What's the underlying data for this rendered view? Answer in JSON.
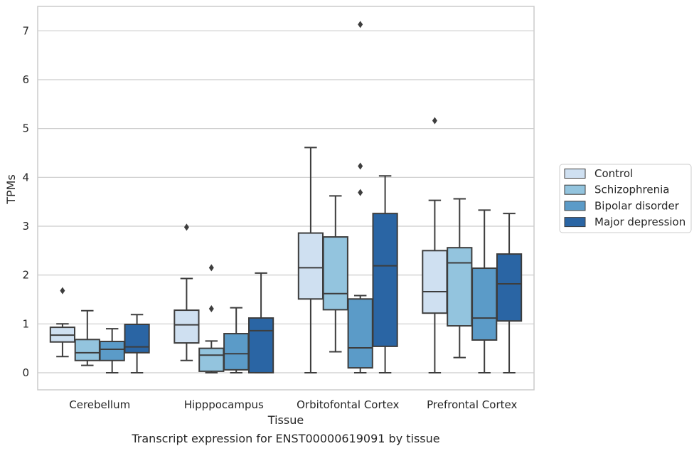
{
  "chart_data": {
    "type": "box",
    "xlabel": "Tissue",
    "ylabel": "TPMs",
    "caption": "Transcript expression for ENST00000619091 by tissue",
    "ylim": [
      -0.35,
      7.5
    ],
    "yticks": [
      "0",
      "1",
      "2",
      "3",
      "4",
      "5",
      "6",
      "7"
    ],
    "grid": true,
    "legend_position": "right",
    "categories": [
      "Cerebellum",
      "Hipppocampus",
      "Orbitofontal Cortex",
      "Prefrontal Cortex"
    ],
    "series": [
      {
        "name": "Control",
        "color": "#cfe0f1",
        "boxes": [
          {
            "whisker_low": 0.33,
            "q1": 0.63,
            "median": 0.77,
            "q3": 0.93,
            "whisker_high": 1.0,
            "outliers": [
              1.68
            ]
          },
          {
            "whisker_low": 0.25,
            "q1": 0.61,
            "median": 0.98,
            "q3": 1.28,
            "whisker_high": 1.93,
            "outliers": [
              2.98
            ]
          },
          {
            "whisker_low": 0.0,
            "q1": 1.51,
            "median": 2.15,
            "q3": 2.86,
            "whisker_high": 4.61,
            "outliers": []
          },
          {
            "whisker_low": 0.0,
            "q1": 1.22,
            "median": 1.66,
            "q3": 2.5,
            "whisker_high": 3.53,
            "outliers": [
              5.16
            ]
          }
        ]
      },
      {
        "name": "Schizophrenia",
        "color": "#93c4de",
        "boxes": [
          {
            "whisker_low": 0.15,
            "q1": 0.25,
            "median": 0.41,
            "q3": 0.68,
            "whisker_high": 1.27,
            "outliers": []
          },
          {
            "whisker_low": 0.0,
            "q1": 0.03,
            "median": 0.36,
            "q3": 0.5,
            "whisker_high": 0.65,
            "outliers": [
              2.15,
              1.31
            ]
          },
          {
            "whisker_low": 0.43,
            "q1": 1.29,
            "median": 1.62,
            "q3": 2.78,
            "whisker_high": 3.62,
            "outliers": []
          },
          {
            "whisker_low": 0.31,
            "q1": 0.96,
            "median": 2.25,
            "q3": 2.56,
            "whisker_high": 3.56,
            "outliers": []
          }
        ]
      },
      {
        "name": "Bipolar disorder",
        "color": "#5b9bc8",
        "boxes": [
          {
            "whisker_low": 0.0,
            "q1": 0.25,
            "median": 0.48,
            "q3": 0.64,
            "whisker_high": 0.9,
            "outliers": []
          },
          {
            "whisker_low": 0.0,
            "q1": 0.06,
            "median": 0.39,
            "q3": 0.8,
            "whisker_high": 1.33,
            "outliers": []
          },
          {
            "whisker_low": 0.0,
            "q1": 0.1,
            "median": 0.51,
            "q3": 1.51,
            "whisker_high": 1.58,
            "outliers": [
              7.13,
              4.23,
              3.69
            ]
          },
          {
            "whisker_low": 0.0,
            "q1": 0.67,
            "median": 1.12,
            "q3": 2.14,
            "whisker_high": 3.33,
            "outliers": []
          }
        ]
      },
      {
        "name": "Major depression",
        "color": "#2a65a4",
        "boxes": [
          {
            "whisker_low": 0.0,
            "q1": 0.41,
            "median": 0.53,
            "q3": 0.99,
            "whisker_high": 1.19,
            "outliers": []
          },
          {
            "whisker_low": 0.0,
            "q1": 0.0,
            "median": 0.86,
            "q3": 1.12,
            "whisker_high": 2.04,
            "outliers": []
          },
          {
            "whisker_low": 0.0,
            "q1": 0.54,
            "median": 2.19,
            "q3": 3.26,
            "whisker_high": 4.03,
            "outliers": []
          },
          {
            "whisker_low": 0.0,
            "q1": 1.06,
            "median": 1.82,
            "q3": 2.43,
            "whisker_high": 3.26,
            "outliers": []
          }
        ]
      }
    ]
  }
}
